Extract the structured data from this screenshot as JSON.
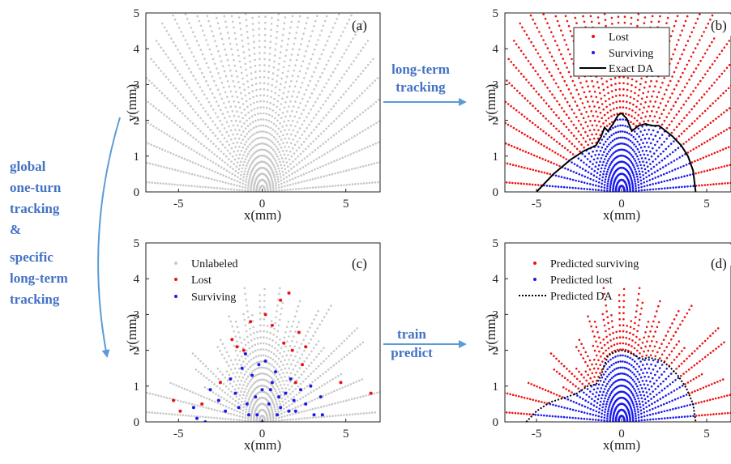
{
  "colors": {
    "unlabeled": "#c8c8c8",
    "lost": "#ee1111",
    "surviving": "#1a1aee",
    "arrow": "#5b9bd5",
    "flow_text": "#4472c4",
    "boundary": "#000000"
  },
  "annotations": {
    "top_arrow": [
      "long-term",
      "tracking"
    ],
    "bottom_arrow": [
      "train",
      "predict"
    ],
    "left_arrow": [
      "global",
      "one-turn",
      "tracking",
      "&",
      "specific",
      "long-term",
      "tracking"
    ]
  },
  "chart_data": [
    {
      "panel": "(a)",
      "type": "scatter",
      "xlabel": "x(mm)",
      "ylabel": "y(mm)",
      "xlim": [
        -7,
        7
      ],
      "ylim": [
        0,
        5
      ],
      "xticks": [
        "-5",
        "0",
        "5"
      ],
      "yticks": [
        "0",
        "1",
        "2",
        "3",
        "4",
        "5"
      ],
      "series": [
        {
          "name": "",
          "color": "#c8c8c8",
          "description_values": "polar grid of initial conditions, 40 rays x 45 amplitudes, r up to ~7.5 mm"
        }
      ],
      "legend": []
    },
    {
      "panel": "(b)",
      "type": "scatter",
      "xlabel": "x(mm)",
      "ylabel": "y(mm)",
      "xlim": [
        -7,
        7
      ],
      "ylim": [
        0,
        5
      ],
      "xticks": [
        "-5",
        "0",
        "5"
      ],
      "yticks": [
        "0",
        "1",
        "2",
        "3",
        "4",
        "5"
      ],
      "legend": [
        "Lost",
        "Surviving",
        "Exact DA"
      ],
      "legend_position": "top-right",
      "series": [
        {
          "name": "Lost",
          "color": "#ee1111"
        },
        {
          "name": "Surviving",
          "color": "#1a1aee"
        },
        {
          "name": "Exact DA",
          "color": "#000000"
        }
      ],
      "boundary": {
        "name": "Exact DA",
        "x": [
          -5.0,
          -4.0,
          -3.0,
          -2.2,
          -1.5,
          -1.2,
          -1.0,
          -0.8,
          -0.5,
          -0.2,
          0.0,
          0.3,
          0.6,
          1.0,
          1.4,
          1.8,
          2.2,
          2.6,
          3.0,
          3.5,
          3.9,
          4.2,
          4.35
        ],
        "y": [
          0.0,
          0.5,
          0.9,
          1.15,
          1.3,
          1.55,
          1.8,
          1.7,
          1.9,
          2.15,
          2.2,
          2.05,
          1.7,
          1.85,
          1.9,
          1.85,
          1.85,
          1.7,
          1.55,
          1.3,
          1.0,
          0.6,
          0.0
        ]
      }
    },
    {
      "panel": "(c)",
      "type": "scatter",
      "xlabel": "x(mm)",
      "ylabel": "y(mm)",
      "xlim": [
        -7,
        7
      ],
      "ylim": [
        0,
        5
      ],
      "xticks": [
        "-5",
        "0",
        "5"
      ],
      "yticks": [
        "0",
        "1",
        "2",
        "3",
        "4",
        "5"
      ],
      "legend": [
        "Unlabeled",
        "Lost",
        "Surviving"
      ],
      "legend_position": "top-left",
      "series": [
        {
          "name": "Unlabeled",
          "color": "#c8c8c8"
        },
        {
          "name": "Lost",
          "color": "#ee1111",
          "x": [
            -5.3,
            -4.9,
            -3.6,
            -1.8,
            -1.5,
            -1.1,
            -0.7,
            0.6,
            1.1,
            1.3,
            1.8,
            2.2,
            2.4,
            2.6,
            0.2,
            1.6,
            4.7,
            6.5,
            -2.5,
            2.0
          ],
          "y": [
            0.6,
            0.3,
            0.5,
            2.3,
            2.1,
            2.0,
            2.8,
            2.7,
            3.4,
            2.2,
            2.0,
            2.5,
            1.6,
            2.1,
            3.0,
            3.6,
            1.1,
            0.8,
            1.1,
            1.1
          ]
        },
        {
          "name": "Surviving",
          "color": "#1a1aee",
          "x": [
            -4.1,
            -3.9,
            -3.1,
            -2.6,
            -2.2,
            -1.9,
            -1.6,
            -1.2,
            -0.9,
            -0.6,
            -0.3,
            0.0,
            0.2,
            0.5,
            0.8,
            1.1,
            1.4,
            1.7,
            2.0,
            2.3,
            2.6,
            3.1,
            3.5,
            -1.0,
            -0.2,
            0.4,
            1.0,
            -1.4,
            1.6,
            0.0,
            -0.4,
            0.6,
            2.9,
            -3.4,
            3.6,
            -0.8,
            0.9,
            1.9
          ],
          "y": [
            0.4,
            0.1,
            0.9,
            0.6,
            0.3,
            1.2,
            0.8,
            1.5,
            0.5,
            1.3,
            0.2,
            0.0,
            1.7,
            0.9,
            1.4,
            0.4,
            0.8,
            1.2,
            0.3,
            0.9,
            0.5,
            0.2,
            0.7,
            1.9,
            1.6,
            0.5,
            0.7,
            0.4,
            0.3,
            0.9,
            0.7,
            1.1,
            1.0,
            0.0,
            0.2,
            0.2,
            0.2,
            0.6
          ]
        }
      ]
    },
    {
      "panel": "(d)",
      "type": "scatter",
      "xlabel": "x(mm)",
      "ylabel": "y(mm)",
      "xlim": [
        -7,
        7
      ],
      "ylim": [
        0,
        5
      ],
      "xticks": [
        "-5",
        "0",
        "5"
      ],
      "yticks": [
        "0",
        "1",
        "2",
        "3",
        "4",
        "5"
      ],
      "legend": [
        "Predicted surviving",
        "Predicted lost",
        "Predicted DA"
      ],
      "legend_position": "top-left",
      "series": [
        {
          "name": "Predicted surviving",
          "color": "#ee1111"
        },
        {
          "name": "Predicted lost",
          "color": "#1a1aee"
        },
        {
          "name": "Predicted DA",
          "color": "#000000"
        }
      ],
      "boundary": {
        "name": "Predicted DA",
        "x": [
          -5.6,
          -5.0,
          -4.2,
          -3.2,
          -2.6,
          -2.0,
          -1.5,
          -1.2,
          -1.0,
          -0.8,
          -0.4,
          0.0,
          0.4,
          0.8,
          1.2,
          1.6,
          2.0,
          2.4,
          2.8,
          3.3,
          3.8,
          4.2,
          4.35
        ],
        "y": [
          0.0,
          0.3,
          0.55,
          0.7,
          0.8,
          1.0,
          1.05,
          1.3,
          1.6,
          1.85,
          1.95,
          2.0,
          1.95,
          1.85,
          1.75,
          1.8,
          1.75,
          1.7,
          1.55,
          1.3,
          0.95,
          0.5,
          0.0
        ]
      }
    }
  ]
}
